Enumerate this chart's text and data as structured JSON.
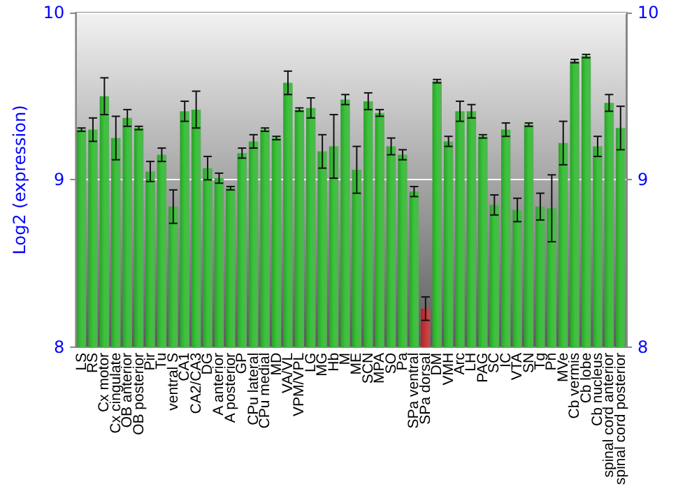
{
  "chart_data": {
    "type": "bar",
    "ylabel": "Log2 (expression)",
    "categories": [
      "LS",
      "RS",
      "Cx motor",
      "Cx cingulate",
      "OB anterior",
      "OB posterior",
      "Pir",
      "Tu",
      "ventral S",
      "CA1",
      "CA2/CA3",
      "DG",
      "A anterior",
      "A posterior",
      "GP",
      "CPu lateral",
      "CPu medial",
      "MD",
      "VA/VL",
      "VPM/VPL",
      "LG",
      "MG",
      "Hb",
      "M",
      "ME",
      "SCN",
      "MPA",
      "SO",
      "Pa",
      "SPa ventral",
      "SPa dorsal",
      "DM",
      "VMH",
      "Arc",
      "LH",
      "PAG",
      "SC",
      "IC",
      "VTA",
      "SN",
      "Tg",
      "Pn",
      "MVe",
      "Cb vermis",
      "Cb lobe",
      "Cb nucleus",
      "spinal cord anterior",
      "spinal cord posterior"
    ],
    "values": [
      9.3,
      9.3,
      9.5,
      9.25,
      9.37,
      9.31,
      9.05,
      9.15,
      8.84,
      9.41,
      9.42,
      9.07,
      9.01,
      8.95,
      9.16,
      9.23,
      9.3,
      9.25,
      9.58,
      9.42,
      9.43,
      9.17,
      9.2,
      9.48,
      9.06,
      9.47,
      9.4,
      9.2,
      9.15,
      8.93,
      8.23,
      9.59,
      9.23,
      9.41,
      9.41,
      9.26,
      8.85,
      9.3,
      8.82,
      9.33,
      8.84,
      8.83,
      9.22,
      9.71,
      9.74,
      9.2,
      9.46,
      9.31
    ],
    "errors": [
      0.01,
      0.07,
      0.11,
      0.13,
      0.05,
      0.01,
      0.06,
      0.04,
      0.1,
      0.06,
      0.11,
      0.07,
      0.03,
      0.01,
      0.03,
      0.04,
      0.01,
      0.01,
      0.07,
      0.01,
      0.06,
      0.1,
      0.19,
      0.03,
      0.14,
      0.05,
      0.02,
      0.05,
      0.03,
      0.03,
      0.07,
      0.01,
      0.03,
      0.06,
      0.04,
      0.01,
      0.06,
      0.04,
      0.07,
      0.01,
      0.08,
      0.2,
      0.13,
      0.01,
      0.01,
      0.06,
      0.05,
      0.13
    ],
    "colors": [
      "#2e9e2e",
      "#2e9e2e",
      "#2e9e2e",
      "#2e9e2e",
      "#2e9e2e",
      "#2e9e2e",
      "#2e9e2e",
      "#2e9e2e",
      "#2e9e2e",
      "#2e9e2e",
      "#2e9e2e",
      "#2e9e2e",
      "#2e9e2e",
      "#2e9e2e",
      "#2e9e2e",
      "#2e9e2e",
      "#2e9e2e",
      "#2e9e2e",
      "#2e9e2e",
      "#2e9e2e",
      "#2e9e2e",
      "#2e9e2e",
      "#2e9e2e",
      "#2e9e2e",
      "#2e9e2e",
      "#2e9e2e",
      "#2e9e2e",
      "#2e9e2e",
      "#2e9e2e",
      "#2e9e2e",
      "#a52a2a",
      "#2e9e2e",
      "#2e9e2e",
      "#2e9e2e",
      "#2e9e2e",
      "#2e9e2e",
      "#2e9e2e",
      "#2e9e2e",
      "#2e9e2e",
      "#2e9e2e",
      "#2e9e2e",
      "#2e9e2e",
      "#2e9e2e",
      "#2e9e2e",
      "#2e9e2e",
      "#2e9e2e",
      "#2e9e2e",
      "#2e9e2e"
    ],
    "ylim": [
      8,
      10
    ],
    "yticks": [
      8,
      9,
      10
    ],
    "y2lim": [
      8,
      10
    ],
    "y2ticks": [
      8,
      9,
      10
    ],
    "grid": "y"
  }
}
